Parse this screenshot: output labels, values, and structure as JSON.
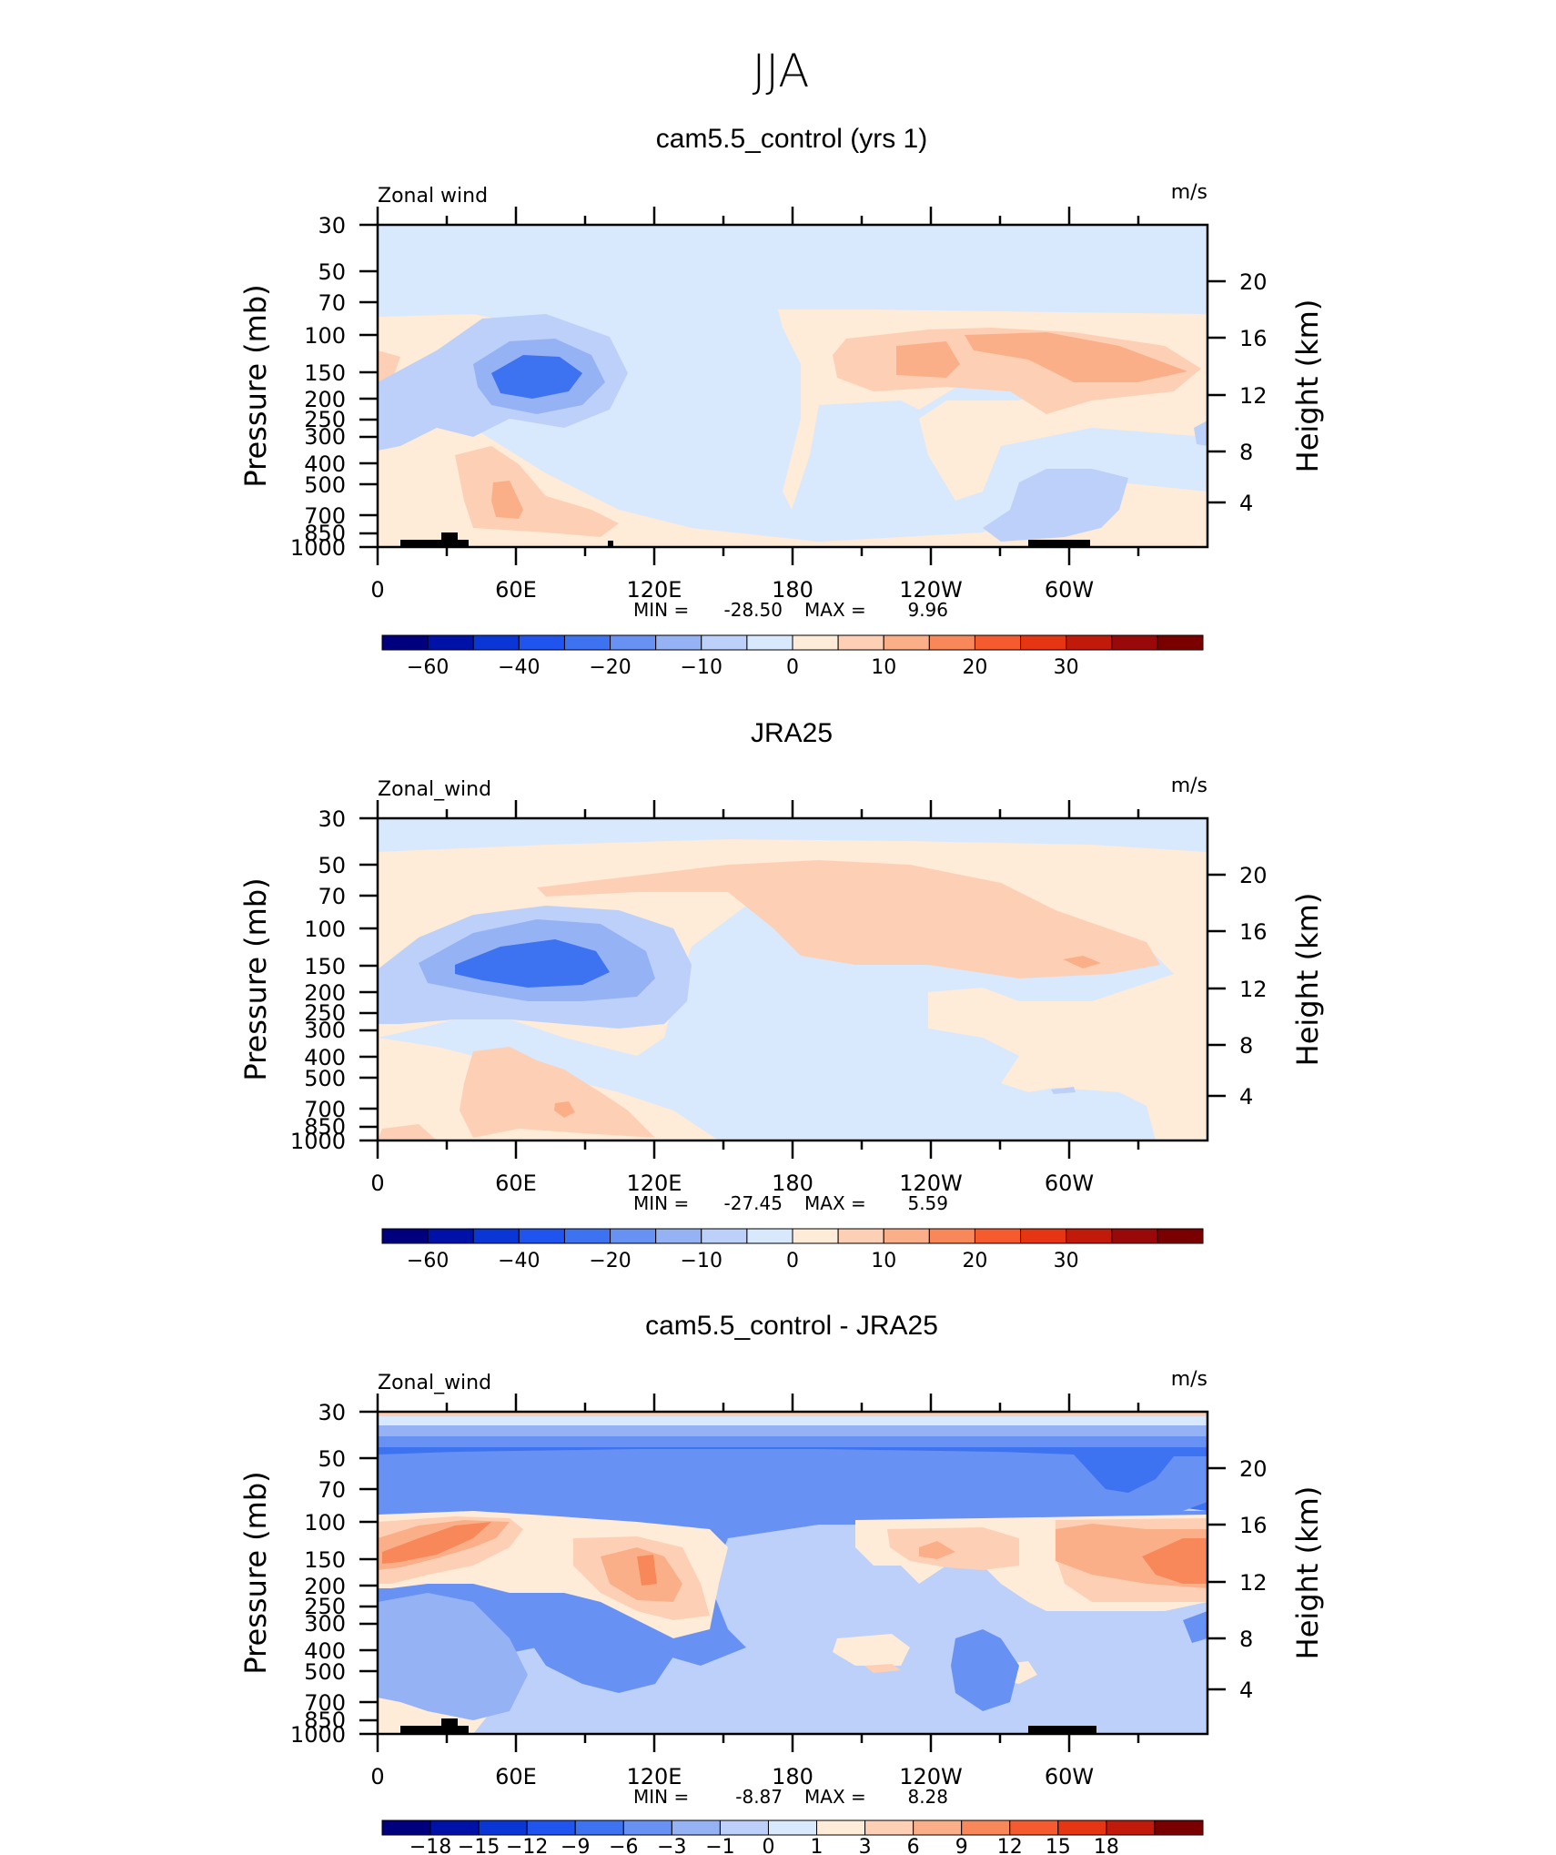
{
  "figure": {
    "title": "JJA",
    "colors": {
      "land": "#000000",
      "frame": "#000000",
      "background": "#ffffff"
    }
  },
  "chart_data": [
    {
      "type": "heatmap",
      "title": "cam5.5_control (yrs 1)",
      "left_label": "Zonal wind",
      "units": "m/s",
      "ylabel": "Pressure (mb)",
      "y2label": "Height (km)",
      "xlabel": "",
      "y_ticks": [
        "30",
        "50",
        "70",
        "100",
        "150",
        "200",
        "250",
        "300",
        "400",
        "500",
        "700",
        "850",
        "1000"
      ],
      "y2_ticks": [
        "20",
        "16",
        "12",
        "8",
        "4"
      ],
      "x_ticks": [
        "0",
        "60E",
        "120E",
        "180",
        "120W",
        "60W"
      ],
      "stats": {
        "min_label": "MIN =",
        "min": "-28.50",
        "max_label": "MAX =",
        "max": "9.96"
      },
      "colorbar": {
        "levels": [
          "-60",
          "-40",
          "-20",
          "-10",
          "0",
          "10",
          "20",
          "30"
        ],
        "colors": [
          "#00007f",
          "#0011a8",
          "#0a36d6",
          "#1f55ee",
          "#3d72f0",
          "#6791f2",
          "#95b2f5",
          "#bcd0fa",
          "#d8e8fd",
          "#feebd8",
          "#fdd0b6",
          "#fbaf88",
          "#f88859",
          "#f55b2f",
          "#e53512",
          "#c11a0a",
          "#99090a",
          "#7a0000"
        ]
      },
      "regions_approx": [
        {
          "label": "negative core",
          "lon_range": [
            40,
            70
          ],
          "pressure_mb": [
            120,
            200
          ],
          "value": -28.5
        },
        {
          "label": "positive easterly jet band",
          "lon_range": [
            200,
            330
          ],
          "pressure_mb": [
            100,
            180
          ],
          "value": 9.96
        }
      ]
    },
    {
      "type": "heatmap",
      "title": "JRA25",
      "left_label": "Zonal_wind",
      "units": "m/s",
      "ylabel": "Pressure (mb)",
      "y2label": "Height (km)",
      "xlabel": "",
      "y_ticks": [
        "30",
        "50",
        "70",
        "100",
        "150",
        "200",
        "250",
        "300",
        "400",
        "500",
        "700",
        "850",
        "1000"
      ],
      "y2_ticks": [
        "20",
        "16",
        "12",
        "8",
        "4"
      ],
      "x_ticks": [
        "0",
        "60E",
        "120E",
        "180",
        "120W",
        "60W"
      ],
      "stats": {
        "min_label": "MIN =",
        "min": "-27.45",
        "max_label": "MAX =",
        "max": "5.59"
      },
      "colorbar": {
        "levels": [
          "-60",
          "-40",
          "-20",
          "-10",
          "0",
          "10",
          "20",
          "30"
        ],
        "colors": [
          "#00007f",
          "#0011a8",
          "#0a36d6",
          "#1f55ee",
          "#3d72f0",
          "#6791f2",
          "#95b2f5",
          "#bcd0fa",
          "#d8e8fd",
          "#feebd8",
          "#fdd0b6",
          "#fbaf88",
          "#f88859",
          "#f55b2f",
          "#e53512",
          "#c11a0a",
          "#99090a",
          "#7a0000"
        ]
      },
      "regions_approx": [
        {
          "label": "negative core",
          "lon_range": [
            45,
            90
          ],
          "pressure_mb": [
            120,
            200
          ],
          "value": -27.45
        },
        {
          "label": "positive band",
          "lon_range": [
            120,
            330
          ],
          "pressure_mb": [
            60,
            170
          ],
          "value": 5.59
        }
      ]
    },
    {
      "type": "heatmap",
      "title": "cam5.5_control - JRA25",
      "left_label": "Zonal_wind",
      "units": "m/s",
      "ylabel": "Pressure (mb)",
      "y2label": "Height (km)",
      "xlabel": "",
      "y_ticks": [
        "30",
        "50",
        "70",
        "100",
        "150",
        "200",
        "250",
        "300",
        "400",
        "500",
        "700",
        "850",
        "1000"
      ],
      "y2_ticks": [
        "20",
        "16",
        "12",
        "8",
        "4"
      ],
      "x_ticks": [
        "0",
        "60E",
        "120E",
        "180",
        "120W",
        "60W"
      ],
      "stats": {
        "min_label": "MIN =",
        "min": "-8.87",
        "max_label": "MAX =",
        "max": "8.28"
      },
      "colorbar": {
        "levels": [
          "-18",
          "-15",
          "-12",
          "-9",
          "-6",
          "-3",
          "-1",
          "0",
          "1",
          "3",
          "6",
          "9",
          "12",
          "15",
          "18"
        ],
        "colors": [
          "#00007f",
          "#0011a8",
          "#0a36d6",
          "#1f55ee",
          "#3d72f0",
          "#6791f2",
          "#95b2f5",
          "#bcd0fa",
          "#d8e8fd",
          "#feebd8",
          "#fdd0b6",
          "#fbaf88",
          "#f88859",
          "#f55b2f",
          "#e53512",
          "#c11a0a",
          "#7a0000"
        ]
      },
      "regions_approx": [
        {
          "label": "negative upper band",
          "lon_range": [
            0,
            330
          ],
          "pressure_mb": [
            45,
            80
          ],
          "value": -8.87
        },
        {
          "label": "positive upper right",
          "lon_range": [
            290,
            360
          ],
          "pressure_mb": [
            120,
            200
          ],
          "value": 8.28
        }
      ]
    }
  ]
}
